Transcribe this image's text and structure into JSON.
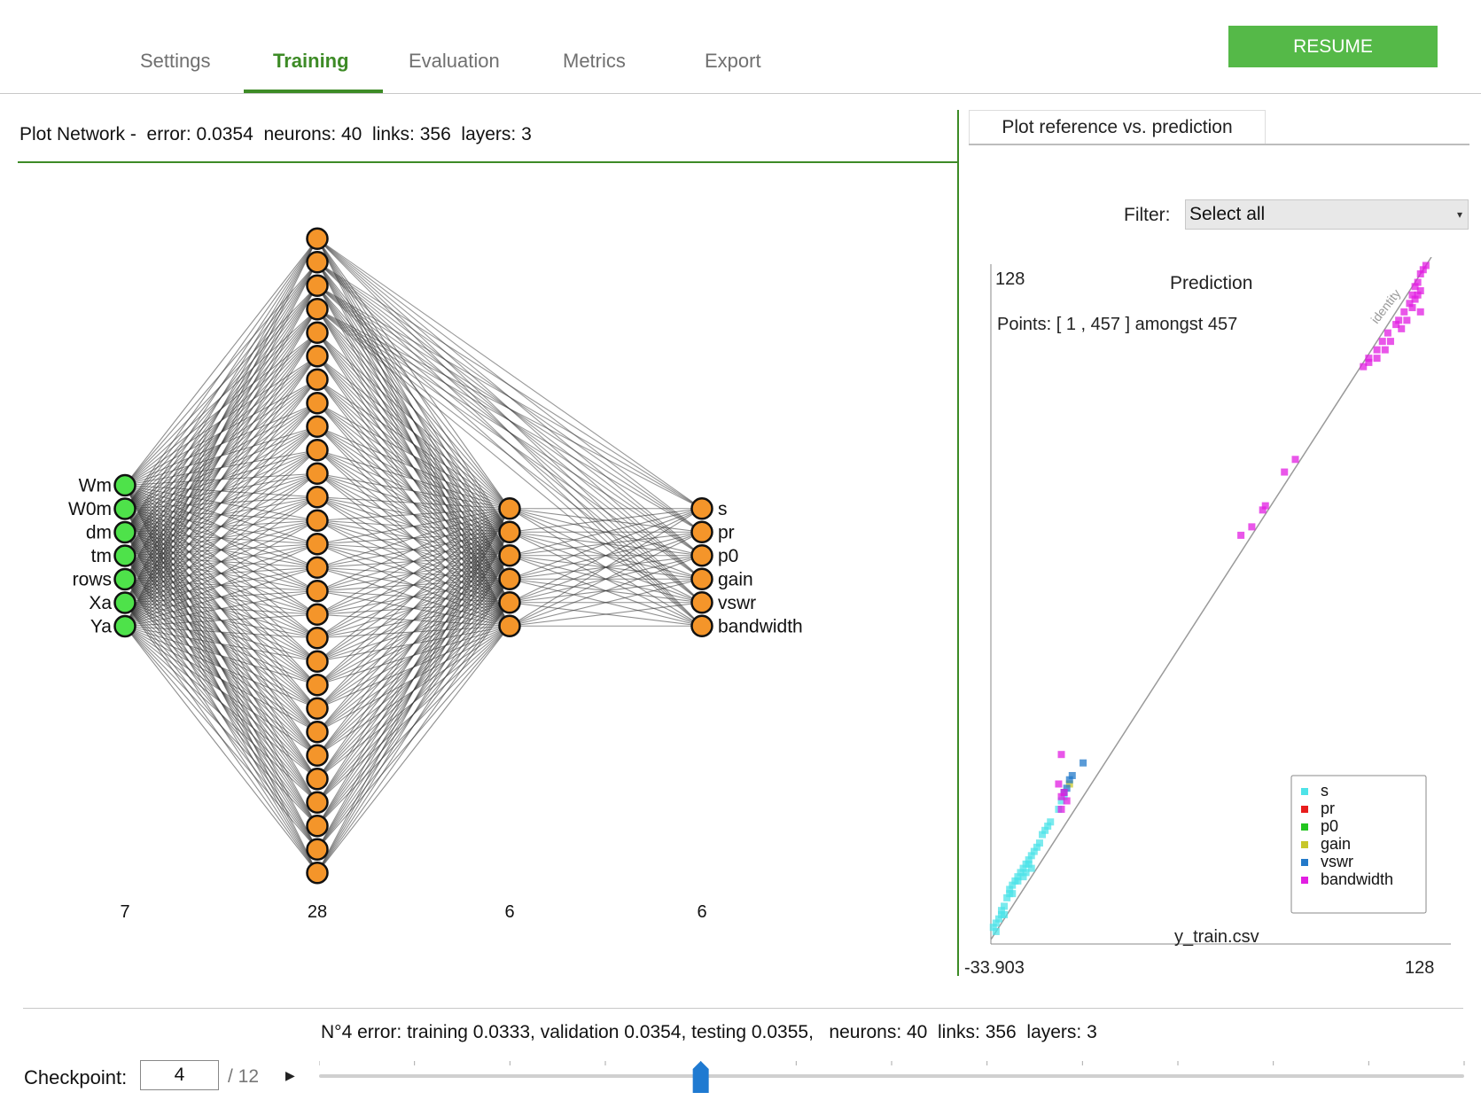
{
  "tabs": [
    {
      "label": "Settings",
      "active": false
    },
    {
      "label": "Training",
      "active": true
    },
    {
      "label": "Evaluation",
      "active": false
    },
    {
      "label": "Metrics",
      "active": false
    },
    {
      "label": "Export",
      "active": false
    }
  ],
  "resume_label": "RESUME",
  "network": {
    "header": "Plot Network -  error: 0.0354  neurons: 40  links: 356  layers: 3",
    "inputs": [
      "Wm",
      "W0m",
      "dm",
      "tm",
      "rows",
      "Xa",
      "Ya"
    ],
    "outputs": [
      "s",
      "pr",
      "p0",
      "gain",
      "vswr",
      "bandwidth"
    ],
    "layer_counts": [
      "7",
      "28",
      "6",
      "6"
    ],
    "colors": {
      "input": "#4ee24a",
      "node": "#f4952a",
      "link": "#333333"
    }
  },
  "plot": {
    "tab_label": "Plot reference vs. prediction",
    "filter_label": "Filter:",
    "filter_value": "Select all",
    "y_max": "128",
    "y_title": "Prediction",
    "points_text": "Points: [ 1 , 457 ] amongst 457",
    "x_min": "-33.903",
    "x_max": "128",
    "x_title": "y_train.csv",
    "identity_label": "identity",
    "legend": [
      {
        "name": "s",
        "color": "#4ee3e8"
      },
      {
        "name": "pr",
        "color": "#e81d1d"
      },
      {
        "name": "p0",
        "color": "#23c520"
      },
      {
        "name": "gain",
        "color": "#c7c72a"
      },
      {
        "name": "vswr",
        "color": "#2379c9"
      },
      {
        "name": "bandwidth",
        "color": "#e21ee2"
      }
    ]
  },
  "chart_data": {
    "type": "scatter",
    "xlabel": "y_train.csv",
    "ylabel": "Prediction",
    "xlim": [
      -33.903,
      128
    ],
    "ylim": [
      -33.903,
      128
    ],
    "series": [
      {
        "name": "s",
        "points": [
          [
            -33,
            -31
          ],
          [
            -32,
            -30
          ],
          [
            -31,
            -29
          ],
          [
            -30,
            -28
          ],
          [
            -30,
            -27
          ],
          [
            -29,
            -26
          ],
          [
            -28,
            -24
          ],
          [
            -27,
            -23
          ],
          [
            -27,
            -22
          ],
          [
            -26,
            -21
          ],
          [
            -25,
            -20
          ],
          [
            -24,
            -19
          ],
          [
            -23,
            -18
          ],
          [
            -22,
            -17
          ],
          [
            -21,
            -16
          ],
          [
            -20,
            -16
          ],
          [
            -20,
            -15
          ],
          [
            -19,
            -14
          ],
          [
            -18,
            -13
          ],
          [
            -17,
            -12
          ],
          [
            -16,
            -11
          ],
          [
            -15,
            -9
          ],
          [
            -14,
            -8
          ],
          [
            -13,
            -7
          ],
          [
            -12,
            -6
          ],
          [
            -26,
            -23
          ],
          [
            -24,
            -20
          ],
          [
            -22,
            -19
          ],
          [
            -21,
            -18
          ],
          [
            -19,
            -17
          ],
          [
            -9,
            -3
          ],
          [
            -8,
            -1
          ],
          [
            -7,
            0
          ],
          [
            -29,
            -28
          ],
          [
            -32,
            -32
          ]
        ]
      },
      {
        "name": "pr",
        "points": []
      },
      {
        "name": "p0",
        "points": []
      },
      {
        "name": "gain",
        "points": [
          [
            -5,
            3
          ]
        ]
      },
      {
        "name": "vswr",
        "points": [
          [
            -6,
            2
          ],
          [
            -5,
            4
          ],
          [
            -4,
            5
          ],
          [
            0,
            8
          ],
          [
            -7,
            1
          ]
        ]
      },
      {
        "name": "bandwidth",
        "points": [
          [
            -9,
            3
          ],
          [
            -8,
            0
          ],
          [
            -7,
            1
          ],
          [
            -6,
            -1
          ],
          [
            -8,
            -3
          ],
          [
            -8,
            10
          ],
          [
            58,
            62
          ],
          [
            62,
            64
          ],
          [
            66,
            68
          ],
          [
            67,
            69
          ],
          [
            74,
            77
          ],
          [
            78,
            80
          ],
          [
            103,
            102
          ],
          [
            105,
            104
          ],
          [
            108,
            106
          ],
          [
            110,
            108
          ],
          [
            112,
            110
          ],
          [
            115,
            112
          ],
          [
            116,
            113
          ],
          [
            118,
            115
          ],
          [
            120,
            117
          ],
          [
            121,
            119
          ],
          [
            122,
            121
          ],
          [
            123,
            122
          ],
          [
            124,
            124
          ],
          [
            125,
            125
          ],
          [
            126,
            126
          ],
          [
            124,
            120
          ],
          [
            122,
            118
          ],
          [
            119,
            113
          ],
          [
            117,
            111
          ],
          [
            113,
            108
          ],
          [
            111,
            106
          ],
          [
            108,
            104
          ],
          [
            105,
            103
          ],
          [
            121,
            116
          ],
          [
            123,
            119
          ],
          [
            124,
            115
          ]
        ]
      }
    ]
  },
  "status_text": "N°4 error: training 0.0333, validation 0.0354, testing 0.0355,   neurons: 40  links: 356  layers: 3",
  "checkpoint": {
    "label": "Checkpoint:",
    "value": "4",
    "total": "/ 12",
    "current": 4,
    "max": 12
  }
}
